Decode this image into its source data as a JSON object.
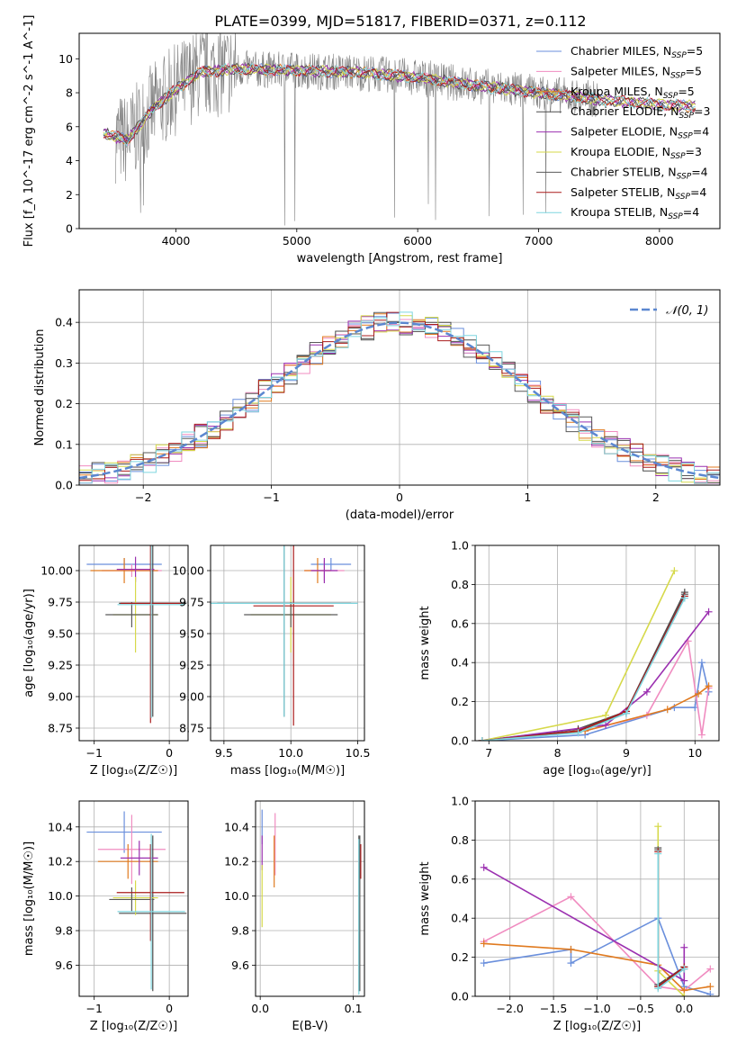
{
  "title": "PLATE=0399, MJD=51817, FIBERID=0371, z=0.112",
  "series_colors": [
    "#6a8fdc",
    "#f08cc0",
    "#e07a1f",
    "#4a4a4a",
    "#9b30b0",
    "#d6d94a",
    "#595959",
    "#aa1c1c",
    "#7fd6df"
  ],
  "legend_entries": [
    {
      "base": "Chabrier MILES, N",
      "sub": "SSP",
      "tail": "=5"
    },
    {
      "base": "Salpeter MILES, N",
      "sub": "SSP",
      "tail": "=5"
    },
    {
      "base": "Kroupa MILES, N",
      "sub": "SSP",
      "tail": "=5"
    },
    {
      "base": "Chabrier ELODIE, N",
      "sub": "SSP",
      "tail": "=3"
    },
    {
      "base": "Salpeter ELODIE, N",
      "sub": "SSP",
      "tail": "=4"
    },
    {
      "base": "Kroupa ELODIE, N",
      "sub": "SSP",
      "tail": "=3"
    },
    {
      "base": "Chabrier STELIB, N",
      "sub": "SSP",
      "tail": "=4"
    },
    {
      "base": "Salpeter STELIB, N",
      "sub": "SSP",
      "tail": "=4"
    },
    {
      "base": "Kroupa STELIB, N",
      "sub": "SSP",
      "tail": "=4"
    }
  ],
  "chart_data": [
    {
      "id": "spectrum",
      "type": "line",
      "xlabel": "wavelength [Angstrom, rest frame]",
      "ylabel": "Flux [f_λ 10^-17 erg cm^-2 s^-1 A^-1]",
      "xlim": [
        3200,
        8500
      ],
      "ylim": [
        0,
        11.5
      ],
      "xticks": [
        4000,
        5000,
        6000,
        7000,
        8000
      ],
      "yticks": [
        0,
        2,
        4,
        6,
        8,
        10
      ],
      "data_color": "#808080",
      "data_wavelength_range": [
        3500,
        7500
      ],
      "model_wavelength_range": [
        3400,
        8300
      ],
      "continuum": [
        [
          3400,
          5.6
        ],
        [
          3600,
          5.2
        ],
        [
          3800,
          7.0
        ],
        [
          4000,
          8.2
        ],
        [
          4200,
          9.2
        ],
        [
          4500,
          9.4
        ],
        [
          5000,
          9.3
        ],
        [
          5500,
          9.2
        ],
        [
          6000,
          8.9
        ],
        [
          6500,
          8.4
        ],
        [
          7000,
          8.0
        ],
        [
          7500,
          7.6
        ],
        [
          8000,
          7.3
        ],
        [
          8300,
          7.2
        ]
      ],
      "grid": false
    },
    {
      "id": "residuals",
      "type": "line",
      "xlabel": "(data-model)/error",
      "ylabel": "Normed distribution",
      "xlim": [
        -2.5,
        2.5
      ],
      "ylim": [
        0,
        0.48
      ],
      "xticks": [
        -2,
        -1,
        0,
        1,
        2
      ],
      "yticks": [
        0.0,
        0.1,
        0.2,
        0.3,
        0.4
      ],
      "reference_label": "𝒩(0, 1)",
      "reference_color": "#5b87d0",
      "legend_position": "top-right",
      "grid": true
    },
    {
      "id": "age-vs-Z",
      "type": "scatter",
      "xlabel": "Z [log₁₀(Z/Z☉)]",
      "ylabel": "age  [log₁₀(age/yr)]",
      "xlim": [
        -1.2,
        0.25
      ],
      "ylim": [
        8.65,
        10.2
      ],
      "xticks": [
        -1,
        0
      ],
      "yticks": [
        8.75,
        9.0,
        9.25,
        9.5,
        9.75,
        10.0
      ],
      "points": [
        {
          "x": -0.6,
          "y": 10.05,
          "xerr": 0.5,
          "yerr": 0.05
        },
        {
          "x": -0.5,
          "y": 10.0,
          "xerr": 0.4,
          "yerr": 0.05
        },
        {
          "x": -0.6,
          "y": 10.0,
          "xerr": 0.45,
          "yerr": 0.1
        },
        {
          "x": -0.22,
          "y": 9.74,
          "xerr": 0.45,
          "yerr": 0.9
        },
        {
          "x": -0.45,
          "y": 10.01,
          "xerr": 0.25,
          "yerr": 0.1
        },
        {
          "x": -0.45,
          "y": 9.65,
          "xerr": 0.3,
          "yerr": 0.3
        },
        {
          "x": -0.5,
          "y": 9.65,
          "xerr": 0.35,
          "yerr": 0.1
        },
        {
          "x": -0.25,
          "y": 9.74,
          "xerr": 0.4,
          "yerr": 0.95
        },
        {
          "x": -0.24,
          "y": 9.73,
          "xerr": 0.45,
          "yerr": 0.9
        }
      ],
      "grid": true
    },
    {
      "id": "age-vs-mass",
      "type": "scatter",
      "xlabel": "mass [log₁₀(M/M☉)]",
      "ylabel": "",
      "xlim": [
        9.4,
        10.55
      ],
      "ylim": [
        8.65,
        10.2
      ],
      "xticks": [
        9.5,
        10.0,
        10.5
      ],
      "yticks": [
        8.75,
        9.0,
        9.25,
        9.5,
        9.75,
        10.0
      ],
      "points": [
        {
          "x": 10.3,
          "y": 10.05,
          "xerr": 0.15,
          "yerr": 0.05
        },
        {
          "x": 10.25,
          "y": 10.0,
          "xerr": 0.15,
          "yerr": 0.08
        },
        {
          "x": 10.2,
          "y": 10.0,
          "xerr": 0.1,
          "yerr": 0.1
        },
        {
          "x": 9.95,
          "y": 9.74,
          "xerr": 0.5,
          "yerr": 0.9
        },
        {
          "x": 10.25,
          "y": 10.0,
          "xerr": 0.1,
          "yerr": 0.1
        },
        {
          "x": 10.0,
          "y": 9.65,
          "xerr": 0.3,
          "yerr": 0.3
        },
        {
          "x": 10.0,
          "y": 9.65,
          "xerr": 0.35,
          "yerr": 0.1
        },
        {
          "x": 10.02,
          "y": 9.72,
          "xerr": 0.3,
          "yerr": 0.95
        },
        {
          "x": 9.95,
          "y": 9.74,
          "xerr": 0.55,
          "yerr": 0.9
        }
      ],
      "grid": true
    },
    {
      "id": "mass-weight-vs-age",
      "type": "line",
      "xlabel": "age  [log₁₀(age/yr)]",
      "ylabel": "mass weight",
      "xlim": [
        6.8,
        10.35
      ],
      "ylim": [
        0,
        1.0
      ],
      "xticks": [
        7,
        8,
        9,
        10
      ],
      "yticks": [
        0.0,
        0.2,
        0.4,
        0.6,
        0.8,
        1.0
      ],
      "series": [
        {
          "x": [
            6.9,
            8.4,
            9.7,
            10.0,
            10.1,
            10.2
          ],
          "y": [
            0.0,
            0.03,
            0.17,
            0.17,
            0.4,
            0.25
          ]
        },
        {
          "x": [
            6.9,
            8.4,
            9.3,
            9.9,
            10.1,
            10.2
          ],
          "y": [
            0.0,
            0.05,
            0.13,
            0.51,
            0.03,
            0.27
          ]
        },
        {
          "x": [
            6.9,
            8.4,
            9.6,
            10.05,
            10.2
          ],
          "y": [
            0.0,
            0.05,
            0.16,
            0.24,
            0.28
          ]
        },
        {
          "x": [
            6.9,
            8.3,
            9.0,
            9.85
          ],
          "y": [
            0.0,
            0.06,
            0.15,
            0.76
          ]
        },
        {
          "x": [
            6.9,
            8.7,
            9.3,
            10.2
          ],
          "y": [
            0.0,
            0.08,
            0.25,
            0.66
          ]
        },
        {
          "x": [
            6.9,
            8.7,
            9.7
          ],
          "y": [
            0.0,
            0.13,
            0.87
          ]
        },
        {
          "x": [
            6.9,
            8.3,
            9.0,
            9.85
          ],
          "y": [
            0.0,
            0.05,
            0.14,
            0.75
          ]
        },
        {
          "x": [
            6.9,
            8.3,
            9.0,
            9.85
          ],
          "y": [
            0.0,
            0.05,
            0.15,
            0.74
          ]
        },
        {
          "x": [
            6.9,
            8.3,
            9.0,
            9.85
          ],
          "y": [
            0.0,
            0.04,
            0.14,
            0.73
          ]
        }
      ],
      "grid": true
    },
    {
      "id": "mass-vs-Z",
      "type": "scatter",
      "xlabel": "Z [log₁₀(Z/Z☉)]",
      "ylabel": "mass [log₁₀(M/M☉)]",
      "xlim": [
        -1.2,
        0.25
      ],
      "ylim": [
        9.42,
        10.55
      ],
      "xticks": [
        -1,
        0
      ],
      "yticks": [
        9.6,
        9.8,
        10.0,
        10.2,
        10.4
      ],
      "points": [
        {
          "x": -0.6,
          "y": 10.37,
          "xerr": 0.5,
          "yerr": 0.12
        },
        {
          "x": -0.5,
          "y": 10.27,
          "xerr": 0.45,
          "yerr": 0.2
        },
        {
          "x": -0.55,
          "y": 10.2,
          "xerr": 0.4,
          "yerr": 0.1
        },
        {
          "x": -0.22,
          "y": 9.9,
          "xerr": 0.45,
          "yerr": 0.45
        },
        {
          "x": -0.4,
          "y": 10.22,
          "xerr": 0.25,
          "yerr": 0.1
        },
        {
          "x": -0.45,
          "y": 9.99,
          "xerr": 0.3,
          "yerr": 0.1
        },
        {
          "x": -0.5,
          "y": 9.98,
          "xerr": 0.3,
          "yerr": 0.07
        },
        {
          "x": -0.25,
          "y": 10.02,
          "xerr": 0.45,
          "yerr": 0.28
        },
        {
          "x": -0.24,
          "y": 9.91,
          "xerr": 0.45,
          "yerr": 0.45
        }
      ],
      "grid": true
    },
    {
      "id": "mass-vs-EBV",
      "type": "scatter",
      "xlabel": "E(B-V)",
      "ylabel": "",
      "xlim": [
        -0.005,
        0.112
      ],
      "ylim": [
        9.42,
        10.55
      ],
      "xticks": [
        0.0,
        0.1
      ],
      "yticks": [
        9.6,
        9.8,
        10.0,
        10.2,
        10.4
      ],
      "points": [
        {
          "x": 0.002,
          "y": 10.4,
          "xerr": 0.0,
          "yerr": 0.1
        },
        {
          "x": 0.016,
          "y": 10.3,
          "xerr": 0.0,
          "yerr": 0.18
        },
        {
          "x": 0.015,
          "y": 10.2,
          "xerr": 0.0,
          "yerr": 0.15
        },
        {
          "x": 0.107,
          "y": 9.9,
          "xerr": 0.0,
          "yerr": 0.45
        },
        {
          "x": 0.002,
          "y": 10.25,
          "xerr": 0.0,
          "yerr": 0.1
        },
        {
          "x": 0.002,
          "y": 10.0,
          "xerr": 0.0,
          "yerr": 0.18
        },
        {
          "x": 0.106,
          "y": 9.9,
          "xerr": 0.0,
          "yerr": 0.45
        },
        {
          "x": 0.108,
          "y": 10.2,
          "xerr": 0.0,
          "yerr": 0.1
        },
        {
          "x": 0.106,
          "y": 9.88,
          "xerr": 0.0,
          "yerr": 0.45
        }
      ],
      "grid": true
    },
    {
      "id": "mass-weight-vs-Z",
      "type": "line",
      "xlabel": "Z [log₁₀(Z/Z☉)]",
      "ylabel": "mass weight",
      "xlim": [
        -2.4,
        0.4
      ],
      "ylim": [
        0,
        1.0
      ],
      "xticks": [
        -2.0,
        -1.5,
        -1.0,
        -0.5,
        0.0
      ],
      "yticks": [
        0.0,
        0.2,
        0.4,
        0.6,
        0.8,
        1.0
      ],
      "series": [
        {
          "x": [
            -2.3,
            -1.3,
            -1.3,
            -0.3,
            0.0,
            0.3
          ],
          "y": [
            0.17,
            0.24,
            0.17,
            0.4,
            0.05,
            0.01
          ]
        },
        {
          "x": [
            -2.3,
            -1.3,
            -0.3,
            0.0,
            0.3
          ],
          "y": [
            0.28,
            0.51,
            0.05,
            0.03,
            0.14
          ]
        },
        {
          "x": [
            -2.3,
            -1.3,
            -0.3,
            0.0,
            0.3
          ],
          "y": [
            0.27,
            0.24,
            0.16,
            0.03,
            0.05
          ]
        },
        {
          "x": [
            -0.3,
            -0.3,
            0.0
          ],
          "y": [
            0.76,
            0.06,
            0.15
          ]
        },
        {
          "x": [
            -2.3,
            0.0,
            0.0
          ],
          "y": [
            0.66,
            0.08,
            0.25
          ]
        },
        {
          "x": [
            -0.3,
            -0.3,
            0.0
          ],
          "y": [
            0.87,
            0.13,
            0.0
          ]
        },
        {
          "x": [
            -0.3,
            -0.3,
            0.0
          ],
          "y": [
            0.75,
            0.05,
            0.14
          ]
        },
        {
          "x": [
            -0.3,
            -0.3,
            0.0
          ],
          "y": [
            0.74,
            0.05,
            0.15
          ]
        },
        {
          "x": [
            -0.3,
            -0.3,
            0.0
          ],
          "y": [
            0.73,
            0.04,
            0.14
          ]
        }
      ],
      "grid": true
    }
  ]
}
